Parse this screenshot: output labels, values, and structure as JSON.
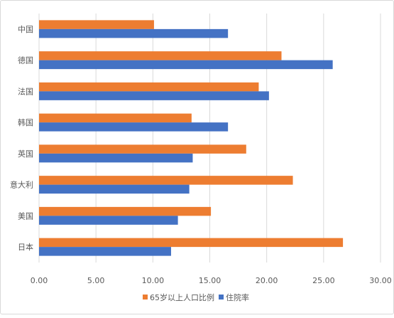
{
  "chart_data": {
    "type": "bar",
    "orientation": "horizontal",
    "categories": [
      "中国",
      "德国",
      "法国",
      "韩国",
      "英国",
      "意大利",
      "美国",
      "日本"
    ],
    "series": [
      {
        "name": "65岁以上人口比例",
        "color": "#ED7D31",
        "values": [
          10.1,
          21.3,
          19.3,
          13.4,
          18.2,
          22.3,
          15.1,
          26.7
        ]
      },
      {
        "name": "住院率",
        "color": "#4472C4",
        "values": [
          16.6,
          25.8,
          20.2,
          16.6,
          13.5,
          13.2,
          12.2,
          11.6
        ]
      }
    ],
    "xlim": [
      0,
      30
    ],
    "xticks": [
      "0.00",
      "5.00",
      "10.00",
      "15.00",
      "20.00",
      "25.00",
      "30.00"
    ],
    "xtick_values": [
      0,
      5,
      10,
      15,
      20,
      25,
      30
    ],
    "grid": true,
    "legend_position": "bottom"
  }
}
